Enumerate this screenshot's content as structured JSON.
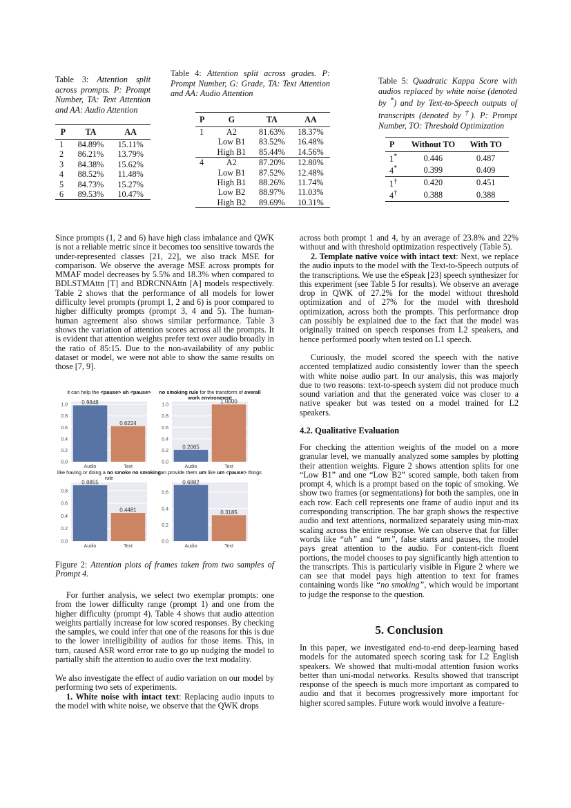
{
  "table3": {
    "label": "Table 3:",
    "caption": "Attention split across prompts. P: Prompt Number, TA: Text Attention and AA: Audio Attention",
    "headers": [
      "P",
      "TA",
      "AA"
    ],
    "rows": [
      [
        "1",
        "84.89%",
        "15.11%"
      ],
      [
        "2",
        "86.21%",
        "13.79%"
      ],
      [
        "3",
        "84.38%",
        "15.62%"
      ],
      [
        "4",
        "88.52%",
        "11.48%"
      ],
      [
        "5",
        "84.73%",
        "15.27%"
      ],
      [
        "6",
        "89.53%",
        "10.47%"
      ]
    ]
  },
  "table4": {
    "label": "Table 4:",
    "caption": "Attention split across grades.  P: Prompt Number, G: Grade, TA: Text Attention and AA: Audio Attention",
    "headers": [
      "P",
      "G",
      "TA",
      "AA"
    ],
    "rows": [
      [
        "1",
        "A2",
        "81.63%",
        "18.37%"
      ],
      [
        "",
        "Low B1",
        "83.52%",
        "16.48%"
      ],
      [
        "",
        "High B1",
        "85.44%",
        "14.56%"
      ],
      [
        "4",
        "A2",
        "87.20%",
        "12.80%"
      ],
      [
        "",
        "Low B1",
        "87.52%",
        "12.48%"
      ],
      [
        "",
        "High B1",
        "88.26%",
        "11.74%"
      ],
      [
        "",
        "Low B2",
        "88.97%",
        "11.03%"
      ],
      [
        "",
        "High B2",
        "89.69%",
        "10.31%"
      ]
    ]
  },
  "table5": {
    "label": "Table 5:",
    "caption_parts": [
      "Quadratic Kappa Score with audios replaced by white noise (denoted by ",
      "*",
      ") and by Text-to-Speech outputs of transcripts (denoted by ",
      "†",
      ").  P: Prompt Number, TO: Threshold Optimization"
    ],
    "headers": [
      "P",
      "Without TO",
      "With TO"
    ],
    "groups": [
      [
        [
          "1",
          "*",
          "0.446",
          "0.487"
        ],
        [
          "4",
          "*",
          "0.399",
          "0.409"
        ]
      ],
      [
        [
          "1",
          "†",
          "0.420",
          "0.451"
        ],
        [
          "4",
          "†",
          "0.388",
          "0.388"
        ]
      ]
    ]
  },
  "left": {
    "p1": "Since prompts (1, 2 and 6) have high class imbalance and QWK is not a reliable metric since it becomes too sensitive towards the under-represented classes [21, 22], we also track MSE for comparison.  We observe the average MSE across prompts for MMAF model decreases by 5.5% and 18.3% when compared to BDLSTMAttn [T] and BDRCNNAttn [A] models respectively. Table 2 shows that the performance of all models for lower difficulty level prompts (prompt 1, 2 and 6) is poor compared to higher difficulty prompts (prompt 3, 4 and 5).  The human-human agreement also shows similar performance.  Table 3 shows the variation of attention scores across all the prompts. It is evident that attention weights prefer text over audio broadly in the ratio of 85:15. Due to the non-availability of any public dataset or model, we were not able to show the same results on those [7, 9].",
    "fig_label": "Figure 2:",
    "fig_caption": "Attention plots of frames taken from two samples of Prompt 4.",
    "p2": "For further analysis, we select two exemplar prompts: one from the lower difficulty range (prompt 1) and one from the higher difficulty (prompt 4). Table 4 shows that audio attention weights partially increase for low scored responses. By checking the samples, we could infer that one of the reasons for this is due to the lower intelligibility of audios for those items. This, in turn, caused ASR word error rate to go up nudging the model to partially shift the attention to audio over the text modality.",
    "p3": "We also investigate the effect of audio variation on our model by performing two sets of experiments.",
    "p4_bold": "1. White noise with intact text",
    "p4": ": Replacing audio inputs to the model with white noise, we observe that the QWK drops"
  },
  "right": {
    "p1": "across both prompt 1 and 4, by an average of 23.8% and 22% without and with threshold optimization respectively (Table 5).",
    "p2_bold": "2. Template native voice with intact text",
    "p2": ": Next, we replace the audio inputs to the model with the Text-to-Speech outputs of the transcriptions.  We use the eSpeak [23] speech synthesizer for this experiment (see Table 5 for results). We observe an average drop in QWK of 27.2% for the model without threshold optimization and of 27% for the model with threshold optimization, across both the prompts.  This performance drop can possibly be explained due to the fact that the model was originally trained on speech responses from L2 speakers, and hence performed poorly when tested on L1 speech.",
    "p3": "Curiously, the model scored the speech with the native accented templatized audio consistently lower than the speech with white noise audio part.  In our analysis, this was majorly due to two reasons: text-to-speech system did not produce much sound variation and that the generated voice was closer to a native speaker but was tested on a model trained for L2 speakers.",
    "section_42": "4.2.  Qualitative Evaluation",
    "p4": [
      "For checking the attention weights of the model on a more granular level, we manually analyzed some samples by plotting their attention weights. Figure 2 shows attention splits for one “Low B1” and one “Low B2” scored sample, both taken from prompt 4, which is a prompt based on the topic of smoking.  We show two frames (or segmentations) for both the samples, one in each row.  Each cell represents one frame of audio input and its corresponding transcription.  The bar graph shows the respective audio and text attentions, normalized separately using min-max scaling across the entire response. We can observe that for filler words like ",
      "“uh”",
      " and ",
      "“um”",
      ", false starts and pauses, the model pays great attention to the audio.  For content-rich fluent portions, the model chooses to pay significantly high attention to the transcripts. This is particularly visible in Figure 2 where we can see that model pays high attention to text for frames containing words like ",
      "“no smoking”",
      ", which would be important to judge the response to the question."
    ],
    "section_5": "5.  Conclusion",
    "p5": "In this paper, we investigated end-to-end deep-learning based models for the automated speech scoring task for L2 English speakers.  We showed that multi-modal attention fusion works better than uni-modal networks. Results showed that transcript response of the speech is much more important as compared to audio and that it becomes progressively more important for higher scored samples.  Future work would involve a feature-"
  },
  "chart_data": [
    {
      "type": "bar",
      "title_parts": [
        {
          "text": "it can help the ",
          "bold": false
        },
        {
          "text": "<pause> uh <pause>",
          "bold": true
        }
      ],
      "categories": [
        "Audio",
        "Text"
      ],
      "values": [
        0.9848,
        0.6224
      ],
      "data_labels": [
        "0.9848",
        "0.6224"
      ],
      "ylim": [
        0,
        1.05
      ],
      "yticks": [
        "0.0",
        "0.2",
        "0.4",
        "0.6",
        "0.8",
        "1.0"
      ],
      "colors": [
        "#5874a5",
        "#cc8462"
      ],
      "background": "#eaeaf2",
      "grid": true
    },
    {
      "type": "bar",
      "title_parts": [
        {
          "text": "no smoking rule",
          "bold": true
        },
        {
          "text": " for the transform of ",
          "bold": false
        },
        {
          "text": "overall work environment",
          "bold": true
        }
      ],
      "categories": [
        "Audio",
        "Text"
      ],
      "values": [
        0.2065,
        1.0
      ],
      "data_labels": [
        "0.2065",
        "1.0000"
      ],
      "ylim": [
        0,
        1.05
      ],
      "yticks": [
        "0.0",
        "0.2",
        "0.4",
        "0.6",
        "0.8",
        "1.0"
      ],
      "colors": [
        "#5874a5",
        "#cc8462"
      ],
      "background": "#eaeaf2",
      "grid": true
    },
    {
      "type": "bar",
      "title_parts": [
        {
          "text": "like having or doing a ",
          "bold": false
        },
        {
          "text": "no smoke no smoking",
          "bold": true
        },
        {
          "text": " rule",
          "bold": false
        }
      ],
      "categories": [
        "Audio",
        "Text"
      ],
      "values": [
        0.8855,
        0.4481
      ],
      "data_labels": [
        "0.8855",
        "0.4481"
      ],
      "ylim": [
        0,
        0.93
      ],
      "yticks": [
        "0.0",
        "0.2",
        "0.4",
        "0.6",
        "0.8"
      ],
      "colors": [
        "#5874a5",
        "#cc8462"
      ],
      "background": "#eaeaf2",
      "grid": true
    },
    {
      "type": "bar",
      "title_parts": [
        {
          "text": "can provide them ",
          "bold": false
        },
        {
          "text": "um",
          "bold": true
        },
        {
          "text": " like ",
          "bold": false
        },
        {
          "text": "um <pause>",
          "bold": true
        },
        {
          "text": " things",
          "bold": false
        }
      ],
      "categories": [
        "Audio",
        "Text"
      ],
      "values": [
        0.6882,
        0.3185
      ],
      "data_labels": [
        "0.6882",
        "0.3185"
      ],
      "ylim": [
        0,
        0.72
      ],
      "yticks": [
        "0.0",
        "0.2",
        "0.4",
        "0.6"
      ],
      "colors": [
        "#5874a5",
        "#cc8462"
      ],
      "background": "#eaeaf2",
      "grid": true
    }
  ]
}
